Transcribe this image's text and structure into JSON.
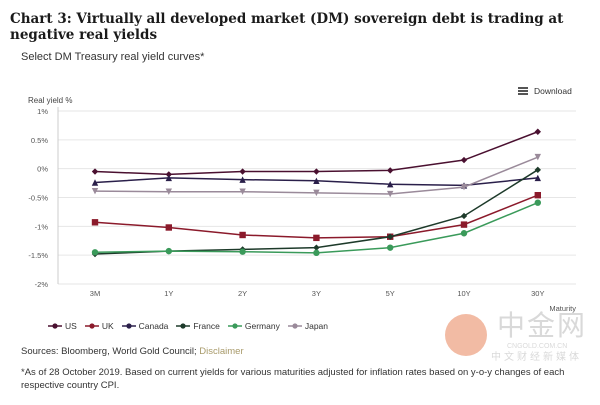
{
  "title": "Chart 3: Virtually all developed market (DM) sovereign debt is trading at negative real yields",
  "download_label": "Download",
  "sources_prefix": "Sources: Bloomberg, World Gold Council; ",
  "disclaimer_link": "Disclaimer",
  "note": "*As of 28 October 2019. Based on current yields for various maturities adjusted for inflation rates based on y-o-y changes of each respective country CPI.",
  "watermark": {
    "cn": "中金网",
    "en": "CNGOLD.COM.CN",
    "sub": "中文财经新媒体"
  },
  "chart_data": {
    "type": "line",
    "title": "Select DM Treasury real yield curves*",
    "xlabel": "Maturity",
    "ylabel": "Real yield %",
    "categories": [
      "3M",
      "1Y",
      "2Y",
      "3Y",
      "5Y",
      "10Y",
      "30Y"
    ],
    "ylim": [
      -2,
      1
    ],
    "yticks": [
      1,
      0.5,
      0,
      -0.5,
      -1,
      -1.5,
      -2
    ],
    "ytick_labels": [
      "1%",
      "0.5%",
      "0%",
      "-0.5%",
      "-1%",
      "-1.5%",
      "-2%"
    ],
    "grid": true,
    "legend_position": "bottom",
    "series": [
      {
        "name": "US",
        "color": "#4a1030",
        "marker": "diamond",
        "values": [
          -0.05,
          -0.1,
          -0.05,
          -0.05,
          -0.03,
          0.15,
          0.64
        ]
      },
      {
        "name": "UK",
        "color": "#8b1a2b",
        "marker": "square",
        "values": [
          -0.93,
          -1.02,
          -1.15,
          -1.2,
          -1.18,
          -0.97,
          -0.46
        ]
      },
      {
        "name": "Canada",
        "color": "#2a1f4a",
        "marker": "triangle",
        "values": [
          -0.24,
          -0.16,
          -0.19,
          -0.21,
          -0.27,
          -0.29,
          -0.16
        ]
      },
      {
        "name": "France",
        "color": "#1d3a2a",
        "marker": "diamond",
        "values": [
          -1.48,
          -1.43,
          -1.4,
          -1.37,
          -1.18,
          -0.82,
          -0.02
        ]
      },
      {
        "name": "Germany",
        "color": "#3a9a5a",
        "marker": "circle",
        "values": [
          -1.45,
          -1.43,
          -1.44,
          -1.46,
          -1.37,
          -1.12,
          -0.59
        ]
      },
      {
        "name": "Japan",
        "color": "#9a8a9a",
        "marker": "triangle-down",
        "values": [
          -0.39,
          -0.4,
          -0.4,
          -0.42,
          -0.44,
          -0.32,
          0.2
        ]
      }
    ]
  }
}
